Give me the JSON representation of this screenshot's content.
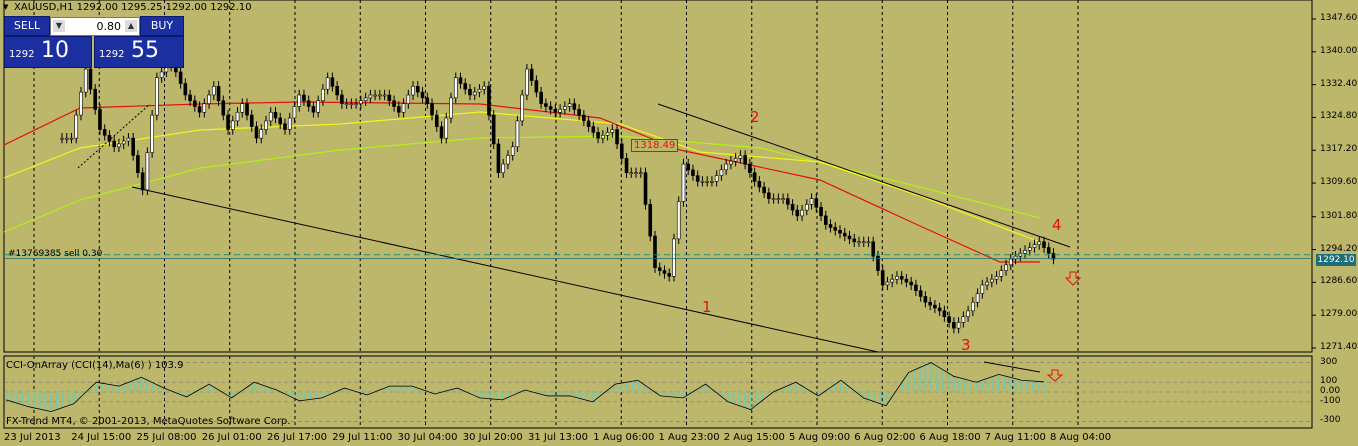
{
  "window": {
    "title": "XAUUSD,H1  1292.00 1295.25 1292.00 1292.10"
  },
  "trade_panel": {
    "sell_label": "SELL",
    "buy_label": "BUY",
    "lot_value": "0.80",
    "sell_price_small": "1292",
    "sell_price_big": "10",
    "buy_price_small": "1292",
    "buy_price_big": "55"
  },
  "order_line": {
    "label": "#13769385 sell 0.30"
  },
  "current_price_tag": "1292.10",
  "level_tag": "1318.49",
  "wave_labels": [
    "1",
    "2",
    "3",
    "4"
  ],
  "price_axis": [
    "1347.60",
    "1340.00",
    "1332.40",
    "1324.80",
    "1317.20",
    "1309.60",
    "1301.80",
    "1294.20",
    "1286.60",
    "1279.00",
    "1271.40"
  ],
  "indicator": {
    "title": "CCI-OnArray (CCI(14),Ma(6) )  103.9",
    "axis": [
      "300",
      "100",
      "0.00",
      "-100",
      "-300"
    ]
  },
  "copyright": "FX-Trend MT4, © 2001-2013, MetaQuotes Software Corp.",
  "time_axis": [
    "23 Jul 2013",
    "24 Jul 15:00",
    "25 Jul 08:00",
    "26 Jul 01:00",
    "26 Jul 17:00",
    "29 Jul 11:00",
    "30 Jul 04:00",
    "30 Jul 20:00",
    "31 Jul 13:00",
    "1 Aug 06:00",
    "1 Aug 23:00",
    "2 Aug 15:00",
    "5 Aug 09:00",
    "6 Aug 02:00",
    "6 Aug 18:00",
    "7 Aug 11:00",
    "8 Aug 04:00"
  ],
  "colors": {
    "background": "#bdb76b",
    "candles": "#000000",
    "ma_red": "#e21010",
    "ma_yellow": "#f5f51c",
    "ma_green": "#b3f01a",
    "accent": "#1c2fa1",
    "cci_hist": "#7fc6a7"
  },
  "chart_data": {
    "type": "candlestick",
    "symbol": "XAUUSD",
    "timeframe": "H1",
    "ylim": [
      1271.4,
      1347.6
    ],
    "x": [
      "23 Jul 2013",
      "24 Jul 15:00",
      "25 Jul 08:00",
      "26 Jul 01:00",
      "26 Jul 17:00",
      "29 Jul 11:00",
      "30 Jul 04:00",
      "30 Jul 20:00",
      "31 Jul 13:00",
      "1 Aug 06:00",
      "1 Aug 23:00",
      "2 Aug 15:00",
      "5 Aug 09:00",
      "6 Aug 02:00",
      "6 Aug 18:00",
      "7 Aug 11:00",
      "8 Aug 04:00"
    ],
    "close_path": [
      1320,
      1336,
      1322,
      1318,
      1320,
      1308,
      1334,
      1338,
      1330,
      1326,
      1332,
      1322,
      1328,
      1320,
      1326,
      1322,
      1330,
      1326,
      1334,
      1328,
      1328,
      1330,
      1330,
      1326,
      1332,
      1328,
      1320,
      1334,
      1330,
      1332,
      1312,
      1318,
      1336,
      1328,
      1326,
      1328,
      1324,
      1320,
      1322,
      1312,
      1312,
      1290,
      1288,
      1314,
      1310,
      1310,
      1314,
      1316,
      1310,
      1306,
      1306,
      1302,
      1306,
      1300,
      1298,
      1296,
      1296,
      1286,
      1288,
      1286,
      1282,
      1280,
      1276,
      1280,
      1286,
      1288,
      1292,
      1294,
      1296,
      1292
    ],
    "current_price": 1292.1,
    "order_price": 1293,
    "cci_series": [
      -80,
      -150,
      -200,
      -120,
      100,
      60,
      150,
      40,
      -50,
      80,
      -60,
      100,
      20,
      -90,
      -60,
      40,
      -30,
      60,
      60,
      -20,
      40,
      -60,
      -80,
      20,
      -40,
      -40,
      -100,
      80,
      120,
      -40,
      -60,
      80,
      -100,
      -180,
      0,
      100,
      -40,
      120,
      -60,
      -140,
      200,
      300,
      160,
      100,
      180,
      120,
      104
    ]
  }
}
